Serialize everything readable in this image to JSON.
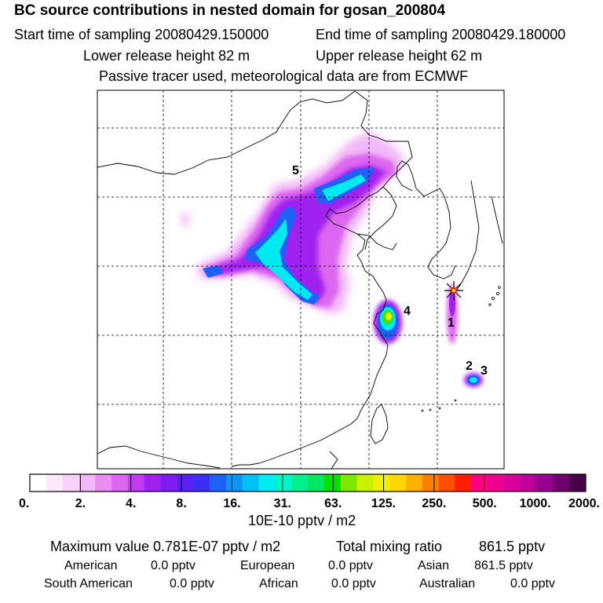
{
  "header": {
    "title": "BC  source contributions in nested domain for gosan_200804",
    "start_label": "Start time of sampling 20080429.150000",
    "end_label": "End time of sampling 20080429.180000",
    "lower_label": "Lower release height   82 m",
    "upper_label": "Upper release height   62 m",
    "tracer_label": "Passive tracer used, meteorological data are from ECMWF"
  },
  "chart_data": {
    "type": "heatmap",
    "title": "BC  source contributions in nested domain for gosan_200804",
    "colorbar": {
      "tick_labels": [
        "0.",
        "2.",
        "4.",
        "8.",
        "16.",
        "31.",
        "63.",
        "125.",
        "250.",
        "500.",
        "1000.",
        "2000."
      ],
      "unit_label": "10E-10 pptv / m2",
      "colors": [
        "#ffffff",
        "#fce8fd",
        "#f8d2fb",
        "#f2b8f8",
        "#e88df4",
        "#dd66f0",
        "#c43cf0",
        "#a020f0",
        "#7d1df3",
        "#5a20f5",
        "#3b2ff5",
        "#2060f5",
        "#1292f5",
        "#00c0f5",
        "#00ecf0",
        "#00f5c8",
        "#00f090",
        "#00e860",
        "#00e000",
        "#80e800",
        "#c8f000",
        "#f0f000",
        "#ffd700",
        "#ffb000",
        "#ff8000",
        "#ff5000",
        "#ff2000",
        "#ff0080",
        "#f00090",
        "#d80098",
        "#c0009c",
        "#9a0090",
        "#70006a",
        "#4a0048"
      ]
    },
    "source_labels": [
      "1",
      "2",
      "3",
      "4",
      "5"
    ],
    "receptor": "gosan"
  },
  "stats": {
    "max_label": "Maximum value  0.781E-07 pptv / m2",
    "total_label": "Total mixing ratio",
    "total_value": "861.5 pptv",
    "rows": [
      [
        {
          "name": "American",
          "value": "0.0 pptv"
        },
        {
          "name": "European",
          "value": "0.0 pptv"
        },
        {
          "name": "Asian",
          "value": "861.5 pptv"
        }
      ],
      [
        {
          "name": "South American",
          "value": "0.0 pptv"
        },
        {
          "name": "African",
          "value": "0.0 pptv"
        },
        {
          "name": "Australian",
          "value": "0.0 pptv"
        }
      ]
    ]
  },
  "colors": {
    "magenta_light": "#f2b8f8",
    "magenta": "#dd66f0",
    "purple": "#a020f0",
    "blue": "#2060f5",
    "cyan": "#00e8f0",
    "green": "#40e000",
    "yellow": "#f0f000",
    "red": "#ff2000"
  }
}
